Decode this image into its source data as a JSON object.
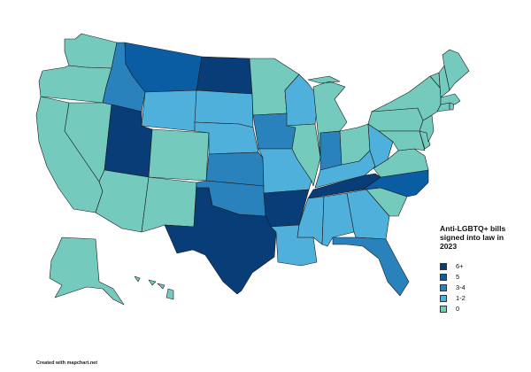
{
  "legend": {
    "title": "Anti-LGBTQ+ bills signed into law in 2023",
    "items": [
      {
        "label": "6+",
        "color": "#083d77"
      },
      {
        "label": "5",
        "color": "#0a5ca3"
      },
      {
        "label": "3-4",
        "color": "#2a82bd"
      },
      {
        "label": "1-2",
        "color": "#4fb0dc"
      },
      {
        "label": "0",
        "color": "#74cbbd"
      }
    ]
  },
  "states": [
    {
      "id": "WA",
      "category": "0"
    },
    {
      "id": "OR",
      "category": "0"
    },
    {
      "id": "CA",
      "category": "0"
    },
    {
      "id": "NV",
      "category": "0"
    },
    {
      "id": "ID",
      "category": "3-4"
    },
    {
      "id": "MT",
      "category": "5"
    },
    {
      "id": "WY",
      "category": "1-2"
    },
    {
      "id": "UT",
      "category": "6+"
    },
    {
      "id": "CO",
      "category": "0"
    },
    {
      "id": "AZ",
      "category": "0"
    },
    {
      "id": "NM",
      "category": "0"
    },
    {
      "id": "ND",
      "category": "6+"
    },
    {
      "id": "SD",
      "category": "1-2"
    },
    {
      "id": "NE",
      "category": "1-2"
    },
    {
      "id": "KS",
      "category": "3-4"
    },
    {
      "id": "OK",
      "category": "3-4"
    },
    {
      "id": "TX",
      "category": "6+"
    },
    {
      "id": "MN",
      "category": "0"
    },
    {
      "id": "IA",
      "category": "3-4"
    },
    {
      "id": "MO",
      "category": "1-2"
    },
    {
      "id": "AR",
      "category": "6+"
    },
    {
      "id": "LA",
      "category": "1-2"
    },
    {
      "id": "WI",
      "category": "1-2"
    },
    {
      "id": "IL",
      "category": "0"
    },
    {
      "id": "MI",
      "category": "0"
    },
    {
      "id": "IN",
      "category": "3-4"
    },
    {
      "id": "OH",
      "category": "0"
    },
    {
      "id": "KY",
      "category": "1-2"
    },
    {
      "id": "TN",
      "category": "6+"
    },
    {
      "id": "MS",
      "category": "1-2"
    },
    {
      "id": "AL",
      "category": "1-2"
    },
    {
      "id": "GA",
      "category": "1-2"
    },
    {
      "id": "FL",
      "category": "3-4"
    },
    {
      "id": "SC",
      "category": "0"
    },
    {
      "id": "NC",
      "category": "5"
    },
    {
      "id": "VA",
      "category": "0"
    },
    {
      "id": "WV",
      "category": "1-2"
    },
    {
      "id": "PA",
      "category": "0"
    },
    {
      "id": "NY",
      "category": "0"
    },
    {
      "id": "MD",
      "category": "0"
    },
    {
      "id": "DE",
      "category": "0"
    },
    {
      "id": "NJ",
      "category": "0"
    },
    {
      "id": "CT",
      "category": "0"
    },
    {
      "id": "RI",
      "category": "0"
    },
    {
      "id": "MA",
      "category": "0"
    },
    {
      "id": "VT",
      "category": "0"
    },
    {
      "id": "NH",
      "category": "0"
    },
    {
      "id": "ME",
      "category": "0"
    },
    {
      "id": "AK",
      "category": "0"
    },
    {
      "id": "HI",
      "category": "0"
    }
  ],
  "credit": "Created with mapchart.net"
}
